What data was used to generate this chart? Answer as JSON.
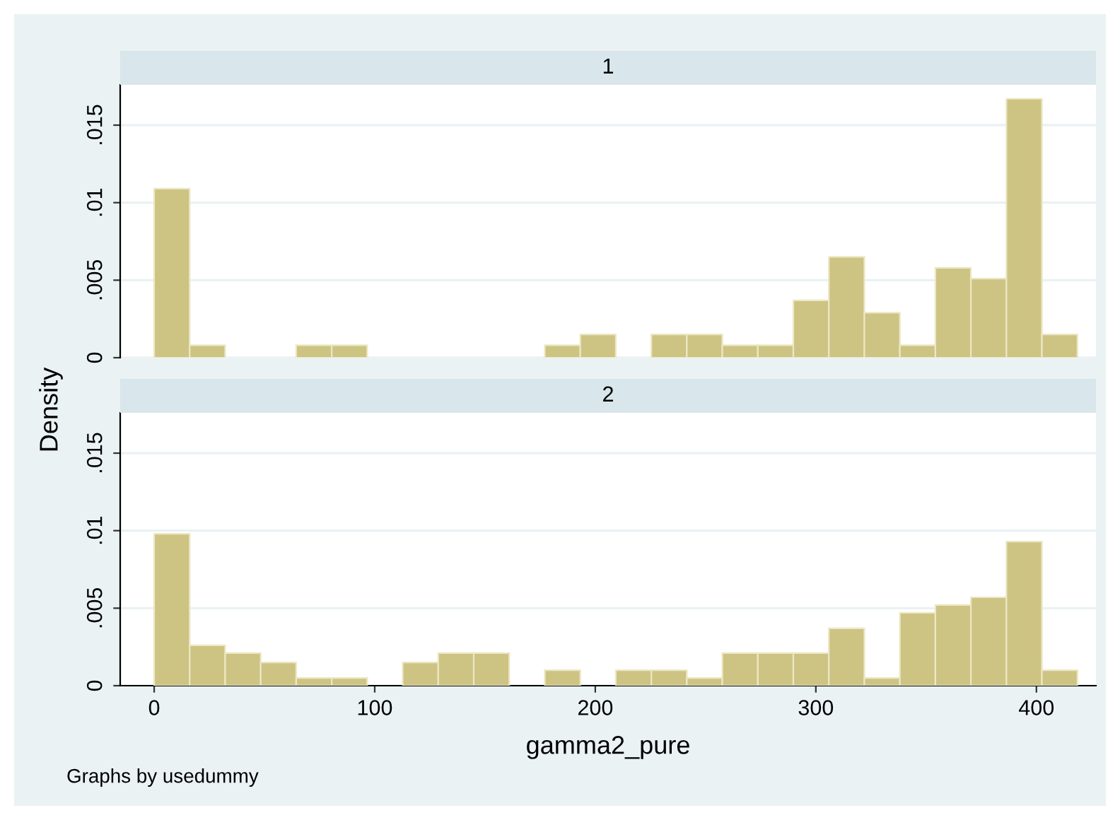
{
  "chart_data": [
    {
      "type": "histogram",
      "title": "1",
      "ylabel": "Density",
      "color": "#cdc383",
      "bins": [
        0,
        16.1,
        32.2,
        48.3,
        64.4,
        80.5,
        96.6,
        112.7,
        128.8,
        144.9,
        161,
        177.1,
        193.2,
        209.3,
        225.4,
        241.5,
        257.6,
        273.7,
        289.8,
        305.9,
        322,
        338.1,
        354.2,
        370.3,
        386.4,
        402.5,
        418.6
      ],
      "values": [
        0.0109,
        0.0008,
        0,
        0,
        0.0008,
        0.0008,
        0,
        0,
        0,
        0,
        0,
        0.0008,
        0.0015,
        0,
        0.0015,
        0.0015,
        0.0008,
        0.0008,
        0.0037,
        0.0065,
        0.0029,
        0.0008,
        0.0058,
        0.0051,
        0.0167,
        0.0015
      ],
      "xlim": [
        -15.4,
        427
      ],
      "ylim": [
        0,
        0.0176
      ],
      "yticks": [
        {
          "value": 0,
          "label": "0"
        },
        {
          "value": 0.005,
          "label": ".005"
        },
        {
          "value": 0.01,
          "label": ".01"
        },
        {
          "value": 0.015,
          "label": ".015"
        }
      ],
      "tick_labels": "y",
      "grid": "y"
    },
    {
      "type": "histogram",
      "title": "2",
      "xlabel": "gamma2_pure",
      "color": "#cdc383",
      "bins": [
        0,
        16.1,
        32.2,
        48.3,
        64.4,
        80.5,
        96.6,
        112.7,
        128.8,
        144.9,
        161,
        177.1,
        193.2,
        209.3,
        225.4,
        241.5,
        257.6,
        273.7,
        289.8,
        305.9,
        322,
        338.1,
        354.2,
        370.3,
        386.4,
        402.5,
        418.6
      ],
      "values": [
        0.0098,
        0.0026,
        0.0021,
        0.0015,
        0.0005,
        0.0005,
        0,
        0.0015,
        0.0021,
        0.0021,
        0,
        0.001,
        0,
        0.001,
        0.001,
        0.0005,
        0.0021,
        0.0021,
        0.0021,
        0.0037,
        0.0005,
        0.0047,
        0.0052,
        0.0057,
        0.0093,
        0.001
      ],
      "xlim": [
        -15.4,
        427
      ],
      "ylim": [
        0,
        0.0176
      ],
      "xticks": [
        0,
        100,
        200,
        300,
        400
      ],
      "yticks": [
        {
          "value": 0,
          "label": "0"
        },
        {
          "value": 0.005,
          "label": ".005"
        },
        {
          "value": 0.01,
          "label": ".01"
        },
        {
          "value": 0.015,
          "label": ".015"
        }
      ],
      "grid": "y",
      "annotations": [
        "Graphs by usedummy"
      ]
    }
  ]
}
